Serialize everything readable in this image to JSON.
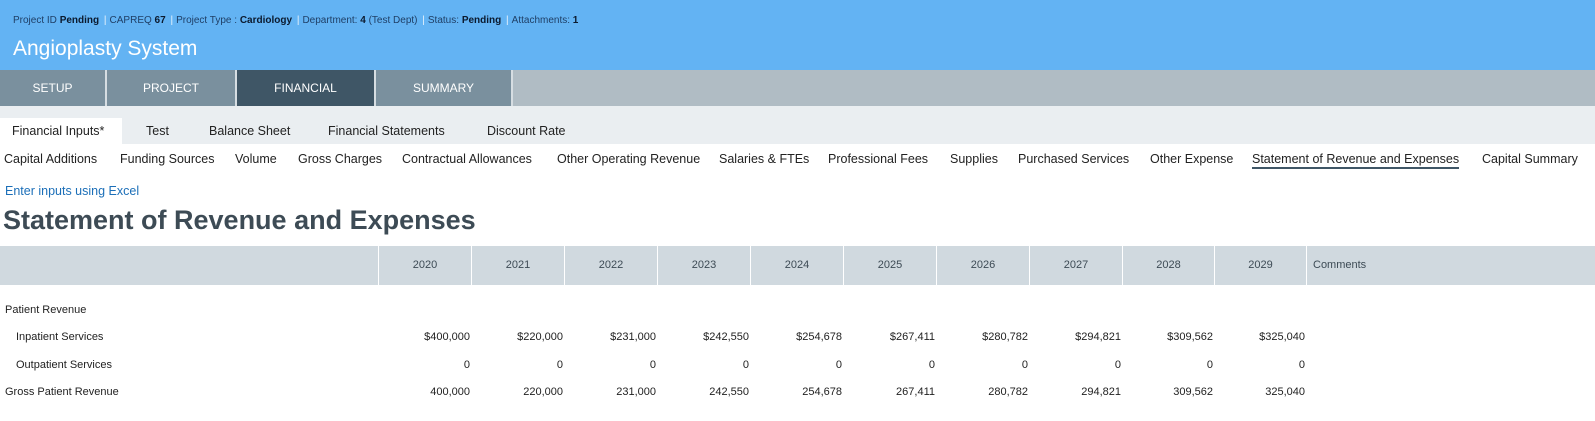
{
  "header": {
    "meta": {
      "project_id_label": "Project ID",
      "project_id_value": "Pending",
      "capreq_label": "CAPREQ",
      "capreq_value": "67",
      "project_type_label": "Project Type :",
      "project_type_value": "Cardiology",
      "department_label": "Department:",
      "department_value": "4",
      "department_name": "(Test Dept)",
      "status_label": "Status:",
      "status_value": "Pending",
      "attachments_label": "Attachments:",
      "attachments_value": "1",
      "separator": "|"
    },
    "title": "Angioplasty System"
  },
  "main_tabs": [
    {
      "label": "SETUP"
    },
    {
      "label": "PROJECT"
    },
    {
      "label": "FINANCIAL"
    },
    {
      "label": "SUMMARY"
    }
  ],
  "sub_tabs": [
    {
      "label": "Financial Inputs*"
    },
    {
      "label": "Test"
    },
    {
      "label": "Balance Sheet"
    },
    {
      "label": "Financial Statements"
    },
    {
      "label": "Discount Rate"
    }
  ],
  "section_nav": [
    {
      "label": "Capital Additions"
    },
    {
      "label": "Funding Sources"
    },
    {
      "label": "Volume"
    },
    {
      "label": "Gross Charges"
    },
    {
      "label": "Contractual Allowances"
    },
    {
      "label": "Other Operating Revenue"
    },
    {
      "label": "Salaries & FTEs"
    },
    {
      "label": "Professional Fees"
    },
    {
      "label": "Supplies"
    },
    {
      "label": "Purchased Services"
    },
    {
      "label": "Other Expense"
    },
    {
      "label": "Statement of Revenue and Expenses"
    },
    {
      "label": "Capital Summary"
    }
  ],
  "excel_link": "Enter inputs using Excel",
  "page_title": "Statement of Revenue and Expenses",
  "table": {
    "columns": [
      "2020",
      "2021",
      "2022",
      "2023",
      "2024",
      "2025",
      "2026",
      "2027",
      "2028",
      "2029"
    ],
    "comments_header": "Comments",
    "rows": [
      {
        "label": "Patient Revenue",
        "values": [
          "",
          "",
          "",
          "",
          "",
          "",
          "",
          "",
          "",
          ""
        ]
      },
      {
        "label": "Inpatient Services",
        "values": [
          "$400,000",
          "$220,000",
          "$231,000",
          "$242,550",
          "$254,678",
          "$267,411",
          "$280,782",
          "$294,821",
          "$309,562",
          "$325,040"
        ]
      },
      {
        "label": "Outpatient Services",
        "values": [
          "0",
          "0",
          "0",
          "0",
          "0",
          "0",
          "0",
          "0",
          "0",
          "0"
        ]
      },
      {
        "label": "Gross Patient Revenue",
        "values": [
          "400,000",
          "220,000",
          "231,000",
          "242,550",
          "254,678",
          "267,411",
          "280,782",
          "294,821",
          "309,562",
          "325,040"
        ]
      }
    ]
  }
}
